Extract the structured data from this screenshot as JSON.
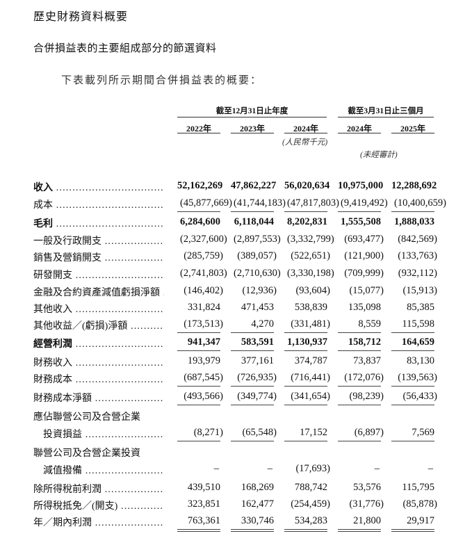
{
  "heading": "歷史財務資料概要",
  "subheading": "合併損益表的主要組成部分的節選資料",
  "intro": "下表載列所示期間合併損益表的概要：",
  "table": {
    "group_headers": [
      "截至12月31日止年度",
      "截至3月31日止三個月"
    ],
    "columns": [
      "2022年",
      "2023年",
      "2024年",
      "2024年",
      "2025年"
    ],
    "unit_note": "(人民幣千元)",
    "unaudited_note": "(未經審計)",
    "rows": [
      {
        "label": "收入",
        "values": [
          "52,162,269",
          "47,862,227",
          "56,020,634",
          "10,975,000",
          "12,288,692"
        ],
        "bold": true
      },
      {
        "label": "成本",
        "values": [
          "(45,877,669)",
          "(41,744,183)",
          "(47,817,803)",
          "(9,419,492)",
          "(10,400,659)"
        ]
      },
      {
        "label": "毛利",
        "values": [
          "6,284,600",
          "6,118,044",
          "8,202,831",
          "1,555,508",
          "1,888,033"
        ],
        "bold": true
      },
      {
        "label": "一般及行政開支",
        "values": [
          "(2,327,600)",
          "(2,897,553)",
          "(3,332,799)",
          "(693,477)",
          "(842,569)"
        ]
      },
      {
        "label": "銷售及營銷開支",
        "values": [
          "(285,759)",
          "(389,057)",
          "(522,651)",
          "(121,900)",
          "(133,763)"
        ]
      },
      {
        "label": "研發開支",
        "values": [
          "(2,741,803)",
          "(2,710,630)",
          "(3,330,198)",
          "(709,999)",
          "(932,112)"
        ]
      },
      {
        "label": "金融及合約資產減值虧損淨額",
        "values": [
          "(146,402)",
          "(12,936)",
          "(93,604)",
          "(15,077)",
          "(15,913)"
        ]
      },
      {
        "label": "其他收入",
        "values": [
          "331,824",
          "471,453",
          "538,839",
          "135,098",
          "85,385"
        ]
      },
      {
        "label": "其他收益／(虧損)淨額",
        "values": [
          "(173,513)",
          "4,270",
          "(331,481)",
          "8,559",
          "115,598"
        ]
      },
      {
        "label": "經營利潤",
        "values": [
          "941,347",
          "583,591",
          "1,130,937",
          "158,712",
          "164,659"
        ],
        "bold": true
      },
      {
        "label": "財務收入",
        "values": [
          "193,979",
          "377,161",
          "374,787",
          "73,837",
          "83,130"
        ]
      },
      {
        "label": "財務成本",
        "values": [
          "(687,545)",
          "(726,935)",
          "(716,441)",
          "(172,076)",
          "(139,563)"
        ]
      },
      {
        "label": "財務成本淨額",
        "values": [
          "(493,566)",
          "(349,774)",
          "(341,654)",
          "(98,239)",
          "(56,433)"
        ]
      },
      {
        "label": "應佔聯營公司及合營企業",
        "values": []
      },
      {
        "label": "投資損益",
        "values": [
          "(8,271)",
          "(65,548)",
          "17,152",
          "(6,897)",
          "7,569"
        ],
        "indent": true
      },
      {
        "label": "聯營公司及合營企業投資",
        "values": []
      },
      {
        "label": "減值撥備",
        "values": [
          "–",
          "–",
          "(17,693)",
          "–",
          "–"
        ],
        "indent": true
      },
      {
        "label": "除所得稅前利潤",
        "values": [
          "439,510",
          "168,269",
          "788,742",
          "53,576",
          "115,795"
        ]
      },
      {
        "label": "所得稅抵免／(開支)",
        "values": [
          "323,851",
          "162,477",
          "(254,459)",
          "(31,776)",
          "(85,878)"
        ]
      },
      {
        "label": "年／期內利潤",
        "values": [
          "763,361",
          "330,746",
          "534,283",
          "21,800",
          "29,917"
        ]
      }
    ]
  }
}
